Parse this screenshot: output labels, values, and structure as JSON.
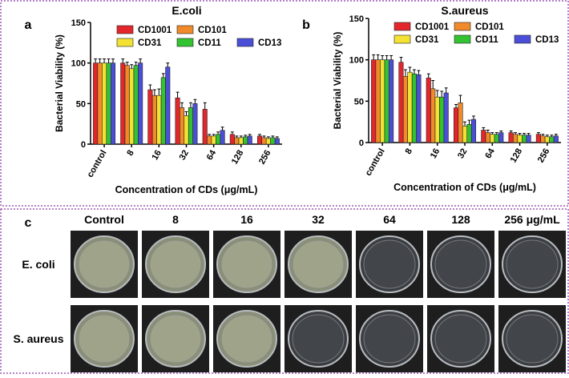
{
  "chart_data": [
    {
      "type": "bar",
      "panel": "a",
      "title": "E.coli",
      "ylabel": "Bacterial Viability (%)",
      "xlabel": "Concentration of CDs (μg/mL)",
      "categories": [
        "control",
        "8",
        "16",
        "32",
        "64",
        "128",
        "256"
      ],
      "ylim": [
        0,
        150
      ],
      "yticks": [
        0,
        50,
        100,
        150
      ],
      "series": [
        {
          "name": "CD1001",
          "color": "#e3262b",
          "values": [
            100,
            100,
            67,
            57,
            43,
            12,
            10
          ],
          "errors": [
            5,
            5,
            6,
            7,
            8,
            3,
            2
          ]
        },
        {
          "name": "CD101",
          "color": "#f08a2a",
          "values": [
            100,
            97,
            60,
            45,
            10,
            8,
            8
          ],
          "errors": [
            5,
            4,
            7,
            6,
            2,
            2,
            2
          ]
        },
        {
          "name": "CD31",
          "color": "#f3e233",
          "values": [
            100,
            93,
            60,
            35,
            10,
            8,
            7
          ],
          "errors": [
            5,
            5,
            8,
            5,
            2,
            2,
            2
          ]
        },
        {
          "name": "CD11",
          "color": "#33c232",
          "values": [
            100,
            97,
            82,
            45,
            12,
            9,
            8
          ],
          "errors": [
            5,
            4,
            5,
            6,
            3,
            2,
            2
          ]
        },
        {
          "name": "CD13",
          "color": "#4b4fd8",
          "values": [
            100,
            100,
            95,
            50,
            17,
            10,
            7
          ],
          "errors": [
            5,
            5,
            5,
            5,
            4,
            2,
            2
          ]
        }
      ]
    },
    {
      "type": "bar",
      "panel": "b",
      "title": "S.aureus",
      "ylabel": "Bacterial Viability (%)",
      "xlabel": "Concentration of CDs (μg/mL)",
      "categories": [
        "control",
        "8",
        "16",
        "32",
        "64",
        "128",
        "256"
      ],
      "ylim": [
        0,
        150
      ],
      "yticks": [
        0,
        50,
        100,
        150
      ],
      "series": [
        {
          "name": "CD1001",
          "color": "#e3262b",
          "values": [
            100,
            97,
            78,
            42,
            15,
            12,
            10
          ],
          "errors": [
            6,
            6,
            5,
            4,
            3,
            2,
            2
          ]
        },
        {
          "name": "CD101",
          "color": "#f08a2a",
          "values": [
            100,
            80,
            65,
            48,
            12,
            10,
            8
          ],
          "errors": [
            6,
            8,
            10,
            9,
            3,
            2,
            2
          ]
        },
        {
          "name": "CD31",
          "color": "#f3e233",
          "values": [
            100,
            85,
            55,
            20,
            10,
            9,
            7
          ],
          "errors": [
            5,
            6,
            8,
            5,
            2,
            2,
            2
          ]
        },
        {
          "name": "CD11",
          "color": "#33c232",
          "values": [
            100,
            83,
            55,
            22,
            10,
            9,
            7
          ],
          "errors": [
            5,
            5,
            7,
            5,
            2,
            2,
            2
          ]
        },
        {
          "name": "CD13",
          "color": "#4b4fd8",
          "values": [
            100,
            82,
            60,
            28,
            12,
            9,
            8
          ],
          "errors": [
            5,
            5,
            6,
            4,
            2,
            2,
            2
          ]
        }
      ]
    }
  ],
  "photos": {
    "panel": "c",
    "columns": [
      "Control",
      "8",
      "16",
      "32",
      "64",
      "128",
      "256 μg/mL"
    ],
    "rows": [
      "E. coli",
      "S. aureus"
    ]
  }
}
